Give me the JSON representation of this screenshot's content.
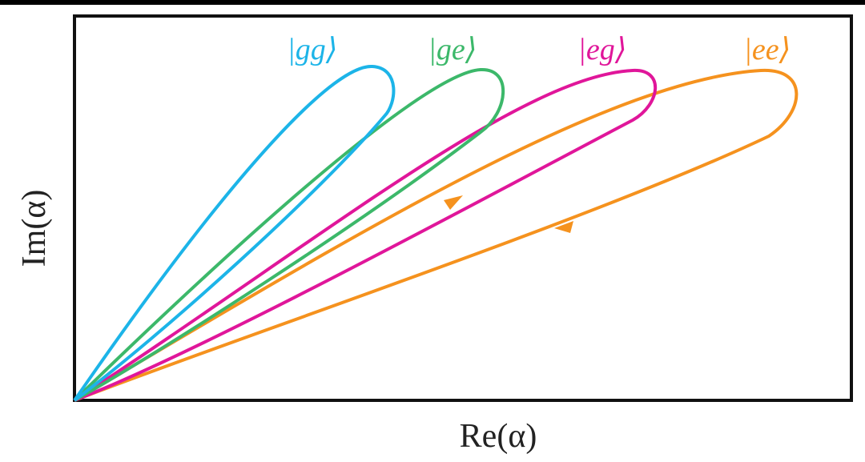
{
  "axes": {
    "x_label": "Re(α)",
    "y_label": "Im(α)"
  },
  "loops": [
    {
      "label": "|gg⟩"
    },
    {
      "label": "|ge⟩"
    },
    {
      "label": "|eg⟩"
    },
    {
      "label": "|ee⟩"
    }
  ]
}
